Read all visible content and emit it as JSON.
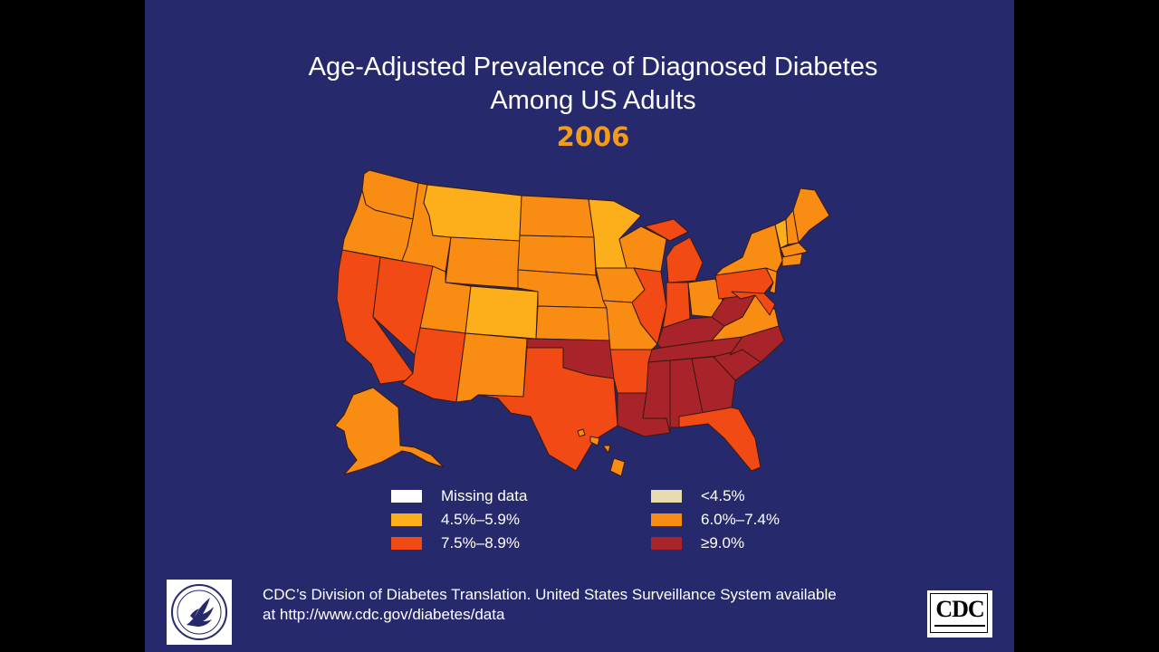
{
  "title": {
    "line1": "Age-Adjusted Prevalence of Diagnosed Diabetes",
    "line2": "Among US Adults",
    "year": "2006"
  },
  "legend": {
    "missing": "Missing data",
    "lt45": "<4.5%",
    "r45_59": "4.5%–5.9%",
    "r60_74": "6.0%–7.4%",
    "r75_89": "7.5%–8.9%",
    "ge90": "≥9.0%"
  },
  "colors": {
    "background": "#262a6c",
    "missing": "#ffffff",
    "lt45": "#e8dbb0",
    "r45_59": "#fdae1b",
    "r60_74": "#f98c12",
    "r75_89": "#f14a14",
    "ge90": "#a8242a",
    "year": "#f39c1b"
  },
  "map": {
    "states_by_category": {
      "r45_59": [
        "Montana",
        "Minnesota",
        "Colorado",
        "Vermont"
      ],
      "r60_74": [
        "Washington",
        "Oregon",
        "Idaho",
        "Wyoming",
        "Utah",
        "New Mexico",
        "North Dakota",
        "South Dakota",
        "Nebraska",
        "Kansas",
        "Iowa",
        "Missouri",
        "Wisconsin",
        "Ohio",
        "Virginia",
        "New York",
        "Maine",
        "New Hampshire",
        "Massachusetts",
        "Connecticut",
        "Rhode Island",
        "New Jersey",
        "Alaska",
        "Hawaii"
      ],
      "r75_89": [
        "California",
        "Nevada",
        "Arizona",
        "Texas",
        "Arkansas",
        "Illinois",
        "Indiana",
        "Michigan",
        "Pennsylvania",
        "Florida",
        "Delaware",
        "Maryland"
      ],
      "ge90": [
        "Oklahoma",
        "Louisiana",
        "Mississippi",
        "Alabama",
        "Georgia",
        "Tennessee",
        "Kentucky",
        "West Virginia",
        "South Carolina",
        "North Carolina"
      ]
    }
  },
  "footer": {
    "line1": "CDC’s Division of Diabetes Translation.  United States Surveillance System available",
    "line2": "at http://www.cdc.gov/diabetes/data"
  },
  "logos": {
    "hhs": "hhs-eagle-icon",
    "cdc": "CDC"
  }
}
